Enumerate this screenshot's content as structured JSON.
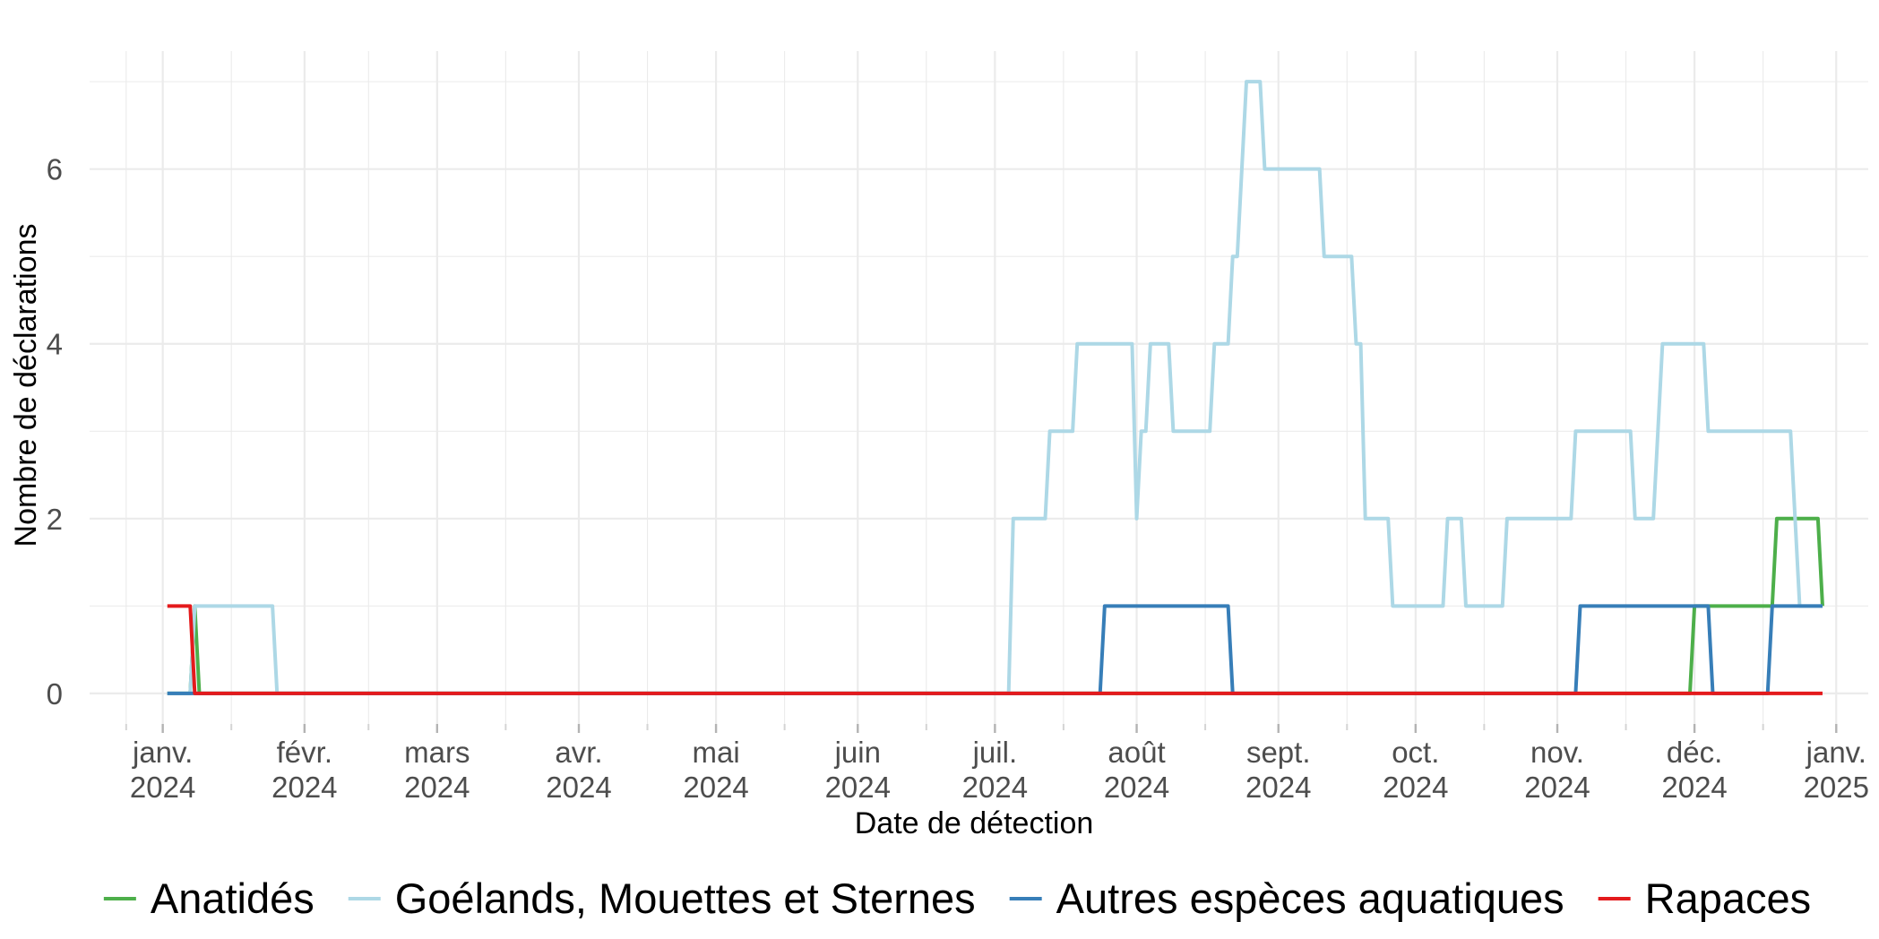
{
  "chart_data": {
    "type": "line",
    "title": "",
    "xlabel": "Date de détection",
    "ylabel": "Nombre de déclarations",
    "xlim": [
      "2023-12-16",
      "2025-01-08"
    ],
    "ylim": [
      -0.35,
      7.35
    ],
    "y_ticks": [
      0,
      2,
      4,
      6
    ],
    "x_ticks": [
      {
        "date": "2024-01-01",
        "month": "janv.",
        "year": "2024"
      },
      {
        "date": "2024-02-01",
        "month": "févr.",
        "year": "2024"
      },
      {
        "date": "2024-03-01",
        "month": "mars",
        "year": "2024"
      },
      {
        "date": "2024-04-01",
        "month": "avr.",
        "year": "2024"
      },
      {
        "date": "2024-05-01",
        "month": "mai",
        "year": "2024"
      },
      {
        "date": "2024-06-01",
        "month": "juin",
        "year": "2024"
      },
      {
        "date": "2024-07-01",
        "month": "juil.",
        "year": "2024"
      },
      {
        "date": "2024-08-01",
        "month": "août",
        "year": "2024"
      },
      {
        "date": "2024-09-01",
        "month": "sept.",
        "year": "2024"
      },
      {
        "date": "2024-10-01",
        "month": "oct.",
        "year": "2024"
      },
      {
        "date": "2024-11-01",
        "month": "nov.",
        "year": "2024"
      },
      {
        "date": "2024-12-01",
        "month": "déc.",
        "year": "2024"
      },
      {
        "date": "2025-01-01",
        "month": "janv.",
        "year": "2025"
      }
    ],
    "grid": true,
    "legend_position": "bottom",
    "series": [
      {
        "name": "Anatidés",
        "color": "#4daf4a",
        "points": [
          [
            "2024-01-02",
            0
          ],
          [
            "2024-01-07",
            0
          ],
          [
            "2024-01-08",
            1
          ],
          [
            "2024-01-09",
            0
          ],
          [
            "2024-11-30",
            0
          ],
          [
            "2024-12-01",
            1
          ],
          [
            "2024-12-18",
            1
          ],
          [
            "2024-12-19",
            2
          ],
          [
            "2024-12-28",
            2
          ],
          [
            "2024-12-29",
            1
          ]
        ]
      },
      {
        "name": "Goélands, Mouettes et Sternes",
        "color": "#add8e6",
        "points": [
          [
            "2024-01-02",
            0
          ],
          [
            "2024-01-07",
            0
          ],
          [
            "2024-01-08",
            1
          ],
          [
            "2024-01-25",
            1
          ],
          [
            "2024-01-26",
            0
          ],
          [
            "2024-07-04",
            0
          ],
          [
            "2024-07-05",
            2
          ],
          [
            "2024-07-12",
            2
          ],
          [
            "2024-07-13",
            3
          ],
          [
            "2024-07-18",
            3
          ],
          [
            "2024-07-19",
            4
          ],
          [
            "2024-07-31",
            4
          ],
          [
            "2024-08-01",
            2
          ],
          [
            "2024-08-02",
            3
          ],
          [
            "2024-08-03",
            3
          ],
          [
            "2024-08-04",
            4
          ],
          [
            "2024-08-08",
            4
          ],
          [
            "2024-08-09",
            3
          ],
          [
            "2024-08-17",
            3
          ],
          [
            "2024-08-18",
            4
          ],
          [
            "2024-08-21",
            4
          ],
          [
            "2024-08-22",
            5
          ],
          [
            "2024-08-23",
            5
          ],
          [
            "2024-08-25",
            7
          ],
          [
            "2024-08-28",
            7
          ],
          [
            "2024-08-29",
            6
          ],
          [
            "2024-09-10",
            6
          ],
          [
            "2024-09-11",
            5
          ],
          [
            "2024-09-17",
            5
          ],
          [
            "2024-09-18",
            4
          ],
          [
            "2024-09-19",
            4
          ],
          [
            "2024-09-20",
            2
          ],
          [
            "2024-09-25",
            2
          ],
          [
            "2024-09-26",
            1
          ],
          [
            "2024-10-07",
            1
          ],
          [
            "2024-10-08",
            2
          ],
          [
            "2024-10-11",
            2
          ],
          [
            "2024-10-12",
            1
          ],
          [
            "2024-10-20",
            1
          ],
          [
            "2024-10-21",
            2
          ],
          [
            "2024-11-04",
            2
          ],
          [
            "2024-11-05",
            3
          ],
          [
            "2024-11-17",
            3
          ],
          [
            "2024-11-18",
            2
          ],
          [
            "2024-11-22",
            2
          ],
          [
            "2024-11-23",
            3
          ],
          [
            "2024-11-24",
            4
          ],
          [
            "2024-12-03",
            4
          ],
          [
            "2024-12-04",
            3
          ],
          [
            "2024-12-22",
            3
          ],
          [
            "2024-12-24",
            1
          ],
          [
            "2024-12-29",
            1
          ]
        ]
      },
      {
        "name": "Autres espèces aquatiques",
        "color": "#377eb8",
        "points": [
          [
            "2024-01-02",
            0
          ],
          [
            "2024-07-24",
            0
          ],
          [
            "2024-07-25",
            1
          ],
          [
            "2024-08-21",
            1
          ],
          [
            "2024-08-22",
            0
          ],
          [
            "2024-11-05",
            0
          ],
          [
            "2024-11-06",
            1
          ],
          [
            "2024-12-04",
            1
          ],
          [
            "2024-12-05",
            0
          ],
          [
            "2024-12-17",
            0
          ],
          [
            "2024-12-18",
            1
          ],
          [
            "2024-12-29",
            1
          ]
        ]
      },
      {
        "name": "Rapaces",
        "color": "#e41a1c",
        "points": [
          [
            "2024-01-02",
            1
          ],
          [
            "2024-01-07",
            1
          ],
          [
            "2024-01-08",
            0
          ],
          [
            "2024-12-29",
            0
          ]
        ]
      }
    ]
  }
}
